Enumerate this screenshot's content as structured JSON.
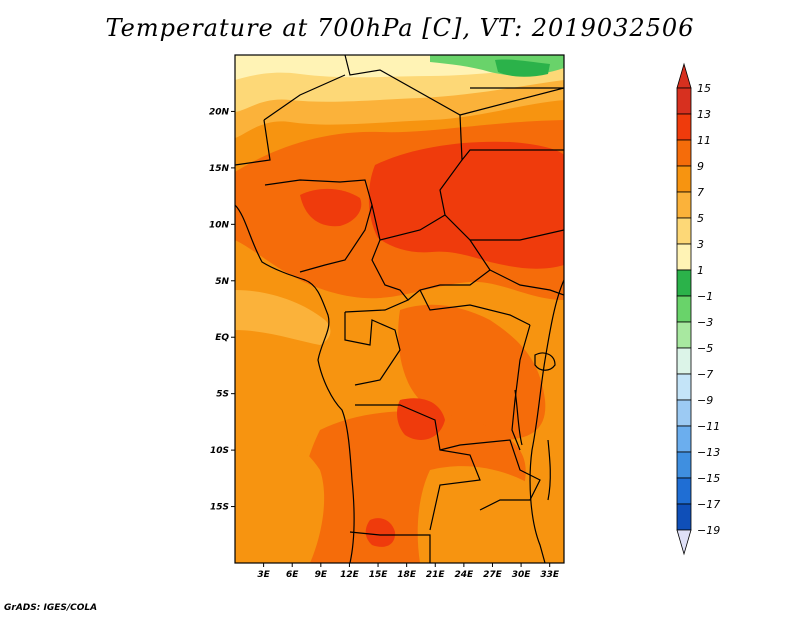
{
  "title": "Temperature at 700hPa [C], VT: 2019032506",
  "footer": "GrADS: IGES/COLA",
  "chart_data": {
    "type": "heatmap",
    "variable": "Temperature at 700hPa",
    "units": "C",
    "valid_time": "2019032506",
    "xlabel": "",
    "ylabel": "",
    "xlim": [
      0,
      34.5
    ],
    "ylim": [
      -20,
      25
    ],
    "x_ticks": [
      {
        "value": 3,
        "label": "3E"
      },
      {
        "value": 6,
        "label": "6E"
      },
      {
        "value": 9,
        "label": "9E"
      },
      {
        "value": 12,
        "label": "12E"
      },
      {
        "value": 15,
        "label": "15E"
      },
      {
        "value": 18,
        "label": "18E"
      },
      {
        "value": 21,
        "label": "21E"
      },
      {
        "value": 24,
        "label": "24E"
      },
      {
        "value": 27,
        "label": "27E"
      },
      {
        "value": 30,
        "label": "30E"
      },
      {
        "value": 33,
        "label": "33E"
      }
    ],
    "y_ticks": [
      {
        "value": 20,
        "label": "20N"
      },
      {
        "value": 15,
        "label": "15N"
      },
      {
        "value": 10,
        "label": "10N"
      },
      {
        "value": 5,
        "label": "5N"
      },
      {
        "value": 0,
        "label": "EQ"
      },
      {
        "value": -5,
        "label": "5S"
      },
      {
        "value": -10,
        "label": "10S"
      },
      {
        "value": -15,
        "label": "15S"
      }
    ],
    "colorbar": {
      "levels": [
        {
          "label": "15",
          "color": "#d7301f"
        },
        {
          "label": "13",
          "color": "#ef3b0c"
        },
        {
          "label": "11",
          "color": "#f56c0a"
        },
        {
          "label": "9",
          "color": "#f79410"
        },
        {
          "label": "7",
          "color": "#fbb23a"
        },
        {
          "label": "5",
          "color": "#fdd877"
        },
        {
          "label": "3",
          "color": "#fff3b5"
        },
        {
          "label": "1",
          "color": "#2bb24a"
        },
        {
          "label": "−1",
          "color": "#69d36a"
        },
        {
          "label": "−3",
          "color": "#a8e8a0"
        },
        {
          "label": "−5",
          "color": "#dcf4e8"
        },
        {
          "label": "−7",
          "color": "#c4e4f8"
        },
        {
          "label": "−9",
          "color": "#9ccaf3"
        },
        {
          "label": "−11",
          "color": "#6baeee"
        },
        {
          "label": "−13",
          "color": "#3f8fe0"
        },
        {
          "label": "−15",
          "color": "#1f6ed4"
        },
        {
          "label": "−17",
          "color": "#0f4fb8"
        },
        {
          "label": "−19",
          "color": "#07297e"
        }
      ],
      "over_color": "#d7301f",
      "under_color": "#dfe0f7"
    }
  }
}
